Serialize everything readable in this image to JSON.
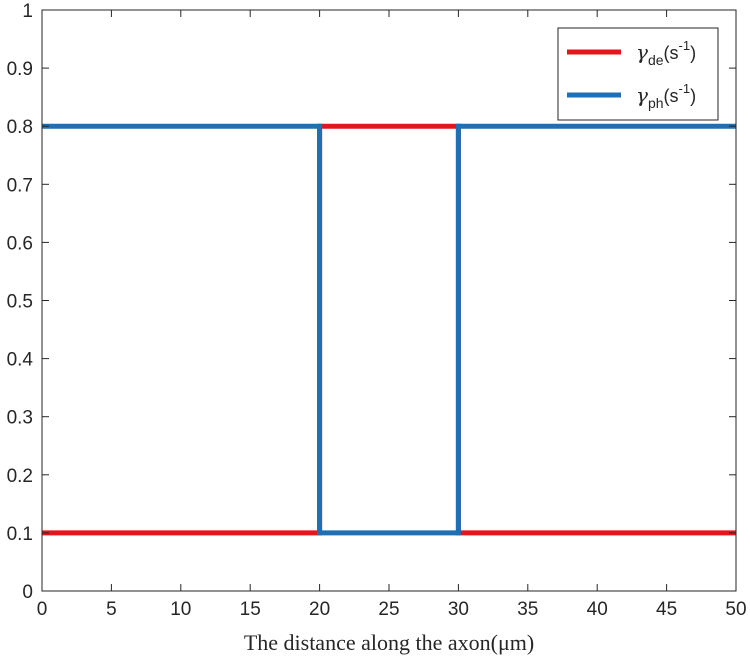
{
  "chart_data": {
    "type": "line",
    "title": "",
    "xlabel": "The distance along the axon(μm)",
    "ylabel": "",
    "xlim": [
      0,
      50
    ],
    "ylim": [
      0,
      1
    ],
    "xticks": [
      0,
      5,
      10,
      15,
      20,
      25,
      30,
      35,
      40,
      45,
      50
    ],
    "yticks": [
      0,
      0.1,
      0.2,
      0.3,
      0.4,
      0.5,
      0.6,
      0.7,
      0.8,
      0.9,
      1
    ],
    "ytick_labels": [
      "0",
      "0.1",
      "0.2",
      "0.3",
      "0.4",
      "0.5",
      "0.6",
      "0.7",
      "0.8",
      "0.9",
      "1"
    ],
    "grid": false,
    "legend_position": "top-right",
    "series": [
      {
        "name": "γde(s-1)",
        "legend": {
          "symbol": "γ",
          "sub": "de",
          "unit": "(s",
          "sup": "-1",
          "close": ")"
        },
        "color": "#e3161b",
        "x": [
          0,
          20,
          20,
          30,
          30,
          50
        ],
        "y": [
          0.1,
          0.1,
          0.8,
          0.8,
          0.1,
          0.1
        ]
      },
      {
        "name": "γph(s-1)",
        "legend": {
          "symbol": "γ",
          "sub": "ph",
          "unit": "(s",
          "sup": "-1",
          "close": ")"
        },
        "color": "#1f6fb4",
        "x": [
          0,
          20,
          20,
          30,
          30,
          50
        ],
        "y": [
          0.8,
          0.8,
          0.1,
          0.1,
          0.8,
          0.8
        ]
      }
    ]
  }
}
